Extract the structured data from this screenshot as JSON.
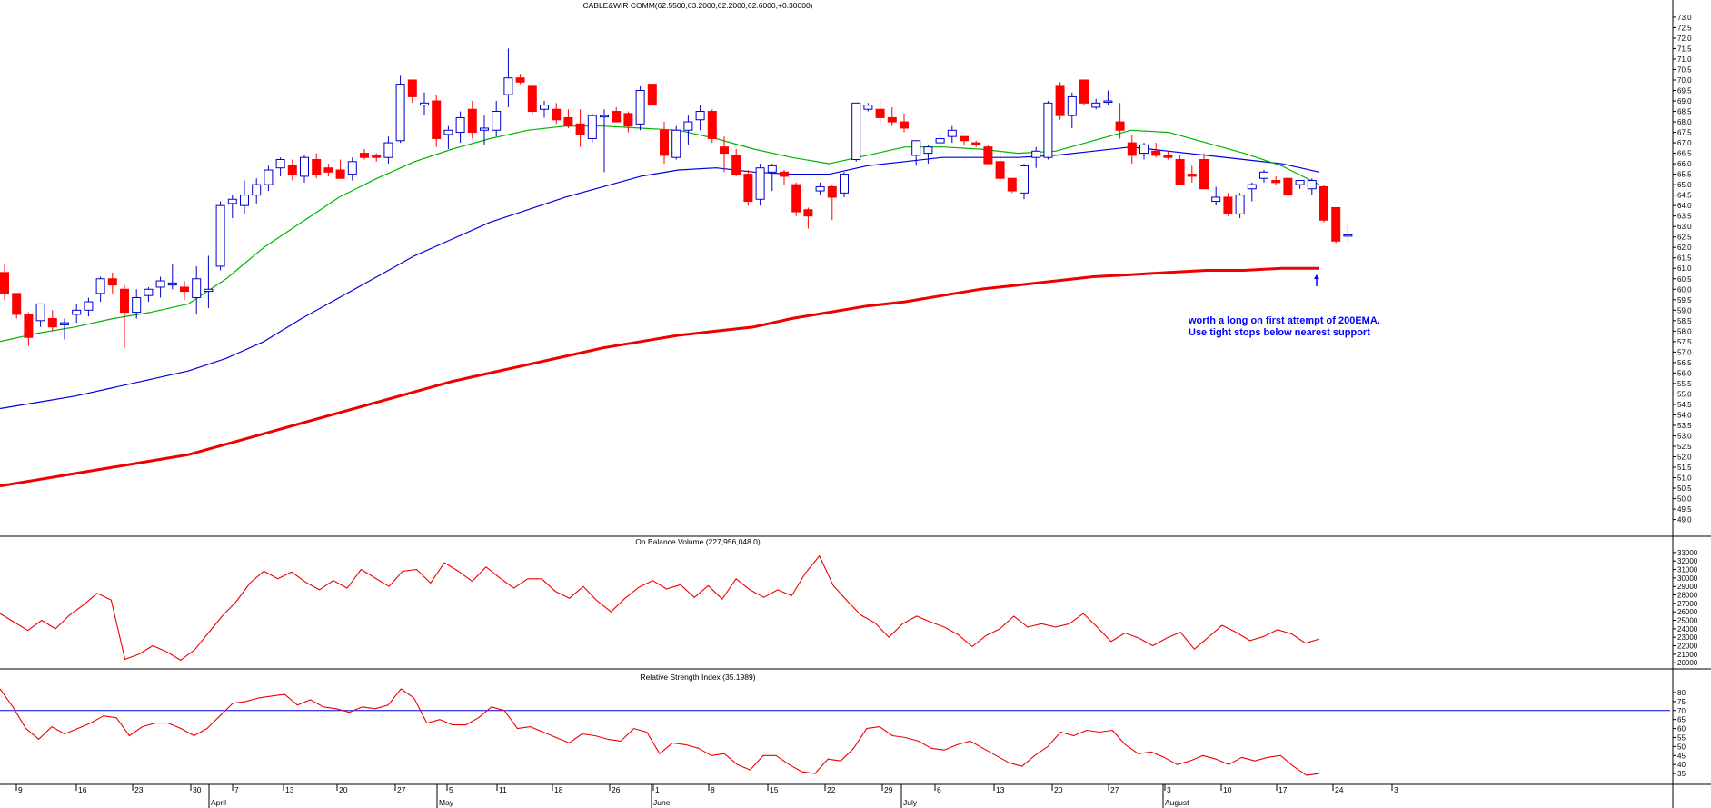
{
  "chart_data": {
    "type": "candlestick",
    "colors": {
      "up_body": "#0000cc",
      "down_body": "#ff0000",
      "ema_green": "#00b400",
      "ema_blue": "#0000dd",
      "ema_200": "#ee0000",
      "indicator_line": "#ee0000",
      "rsi_level": "#0000ee",
      "annotation": "#0000ff"
    },
    "main": {
      "title": "CABLE&WIR COMM(62.5500,63.2000,62.2000,62.6000,+0.30000)",
      "y_ticks": [
        73.0,
        72.5,
        72.0,
        71.5,
        71.0,
        70.5,
        70.0,
        69.5,
        69.0,
        68.5,
        68.0,
        67.5,
        67.0,
        66.5,
        66.0,
        65.5,
        65.0,
        64.5,
        64.0,
        63.5,
        63.0,
        62.5,
        62.0,
        61.5,
        61.0,
        60.5,
        60.0,
        59.5,
        59.0,
        58.5,
        58.0,
        57.5,
        57.0,
        56.5,
        56.0,
        55.5,
        55.0,
        54.5,
        54.0,
        53.5,
        53.0,
        52.5,
        52.0,
        51.5,
        51.0,
        50.5,
        50.0,
        49.5,
        49.0
      ],
      "ylim": [
        48.2,
        73.3
      ],
      "candles": [
        [
          60.8,
          61.2,
          59.5,
          59.8
        ],
        [
          59.8,
          59.8,
          58.6,
          58.8
        ],
        [
          58.8,
          58.9,
          57.3,
          57.7
        ],
        [
          58.5,
          59.3,
          58.2,
          59.3
        ],
        [
          58.6,
          59.0,
          58.0,
          58.2
        ],
        [
          58.3,
          58.6,
          57.6,
          58.4
        ],
        [
          58.8,
          59.3,
          58.4,
          59.0
        ],
        [
          59.0,
          59.6,
          58.7,
          59.4
        ],
        [
          59.8,
          60.6,
          59.4,
          60.5
        ],
        [
          60.5,
          60.8,
          59.8,
          60.2
        ],
        [
          60.0,
          60.2,
          57.2,
          58.9
        ],
        [
          58.9,
          60.0,
          58.6,
          59.6
        ],
        [
          59.7,
          60.1,
          59.4,
          60.0
        ],
        [
          60.1,
          60.6,
          59.6,
          60.4
        ],
        [
          60.2,
          61.2,
          60.0,
          60.3
        ],
        [
          60.1,
          60.4,
          59.5,
          59.9
        ],
        [
          59.6,
          61.1,
          58.8,
          60.5
        ],
        [
          59.9,
          61.6,
          59.1,
          60.0
        ],
        [
          61.1,
          64.2,
          60.9,
          64.0
        ],
        [
          64.1,
          64.5,
          63.4,
          64.3
        ],
        [
          64.0,
          65.2,
          63.6,
          64.5
        ],
        [
          64.5,
          65.3,
          64.1,
          65.0
        ],
        [
          65.0,
          65.9,
          64.7,
          65.7
        ],
        [
          65.8,
          66.3,
          65.4,
          66.2
        ],
        [
          65.9,
          66.2,
          65.2,
          65.5
        ],
        [
          65.4,
          66.4,
          65.1,
          66.3
        ],
        [
          66.2,
          66.5,
          65.3,
          65.5
        ],
        [
          65.8,
          66.0,
          65.4,
          65.6
        ],
        [
          65.7,
          66.2,
          65.3,
          65.3
        ],
        [
          65.5,
          66.3,
          65.2,
          66.1
        ],
        [
          66.5,
          66.7,
          66.2,
          66.3
        ],
        [
          66.4,
          66.5,
          66.1,
          66.3
        ],
        [
          66.3,
          67.3,
          66.0,
          67.0
        ],
        [
          67.1,
          70.2,
          67.0,
          69.8
        ],
        [
          70.0,
          70.0,
          68.9,
          69.2
        ],
        [
          68.8,
          69.4,
          68.3,
          68.9
        ],
        [
          69.0,
          69.3,
          66.8,
          67.2
        ],
        [
          67.4,
          67.8,
          66.7,
          67.6
        ],
        [
          67.5,
          68.5,
          67.0,
          68.2
        ],
        [
          68.6,
          69.0,
          67.2,
          67.5
        ],
        [
          67.6,
          68.3,
          66.9,
          67.7
        ],
        [
          67.6,
          69.0,
          67.3,
          68.5
        ],
        [
          69.3,
          71.5,
          68.7,
          70.1
        ],
        [
          70.1,
          70.3,
          69.8,
          69.9
        ],
        [
          69.7,
          69.8,
          68.3,
          68.5
        ],
        [
          68.6,
          69.0,
          68.2,
          68.8
        ],
        [
          68.6,
          68.9,
          67.9,
          68.1
        ],
        [
          68.2,
          68.6,
          67.7,
          67.8
        ],
        [
          67.9,
          68.6,
          66.8,
          67.4
        ],
        [
          67.2,
          68.4,
          67.0,
          68.3
        ],
        [
          68.3,
          68.6,
          65.6,
          68.3
        ],
        [
          68.5,
          68.7,
          68.0,
          68.0
        ],
        [
          68.4,
          68.5,
          67.5,
          67.8
        ],
        [
          67.9,
          69.7,
          67.6,
          69.5
        ],
        [
          69.8,
          69.8,
          68.8,
          68.8
        ],
        [
          67.6,
          68.0,
          66.0,
          66.4
        ],
        [
          66.3,
          67.8,
          66.2,
          67.6
        ],
        [
          67.6,
          68.3,
          66.9,
          68.0
        ],
        [
          68.1,
          68.8,
          67.6,
          68.5
        ],
        [
          68.5,
          68.6,
          67.0,
          67.2
        ],
        [
          66.8,
          67.3,
          65.6,
          66.5
        ],
        [
          66.4,
          66.7,
          65.4,
          65.5
        ],
        [
          65.5,
          65.7,
          64.0,
          64.2
        ],
        [
          64.3,
          66.0,
          64.0,
          65.8
        ],
        [
          65.6,
          66.0,
          64.7,
          65.9
        ],
        [
          65.6,
          65.7,
          65.0,
          65.4
        ],
        [
          65.0,
          65.1,
          63.5,
          63.7
        ],
        [
          63.8,
          63.9,
          62.9,
          63.5
        ],
        [
          64.7,
          65.1,
          64.5,
          64.9
        ],
        [
          64.9,
          65.0,
          63.3,
          64.4
        ],
        [
          64.6,
          65.6,
          64.4,
          65.5
        ],
        [
          66.2,
          68.9,
          66.1,
          68.9
        ],
        [
          68.6,
          68.9,
          68.5,
          68.8
        ],
        [
          68.6,
          69.1,
          67.9,
          68.2
        ],
        [
          68.2,
          68.7,
          67.8,
          68.0
        ],
        [
          68.0,
          68.4,
          67.5,
          67.7
        ],
        [
          66.4,
          67.1,
          65.9,
          67.1
        ],
        [
          66.5,
          66.9,
          66.0,
          66.8
        ],
        [
          67.0,
          67.5,
          66.7,
          67.2
        ],
        [
          67.3,
          67.8,
          67.0,
          67.6
        ],
        [
          67.3,
          67.3,
          66.9,
          67.1
        ],
        [
          67.0,
          67.1,
          66.8,
          66.9
        ],
        [
          66.8,
          66.9,
          66.0,
          66.0
        ],
        [
          66.1,
          66.6,
          65.2,
          65.3
        ],
        [
          65.3,
          65.3,
          64.6,
          64.7
        ],
        [
          64.6,
          66.0,
          64.3,
          65.9
        ],
        [
          66.3,
          66.8,
          65.8,
          66.6
        ],
        [
          66.3,
          69.0,
          66.2,
          68.9
        ],
        [
          69.7,
          69.9,
          68.1,
          68.3
        ],
        [
          68.3,
          69.4,
          67.7,
          69.2
        ],
        [
          70.0,
          70.0,
          68.8,
          68.9
        ],
        [
          68.7,
          69.1,
          68.6,
          68.9
        ],
        [
          69.0,
          69.5,
          68.8,
          69.0
        ],
        [
          68.0,
          68.9,
          67.2,
          67.6
        ],
        [
          67.0,
          67.4,
          66.0,
          66.4
        ],
        [
          66.5,
          67.0,
          66.2,
          66.9
        ],
        [
          66.6,
          67.0,
          66.3,
          66.4
        ],
        [
          66.4,
          66.6,
          66.2,
          66.3
        ],
        [
          66.2,
          66.4,
          65.0,
          65.0
        ],
        [
          65.5,
          65.9,
          65.1,
          65.4
        ],
        [
          66.2,
          66.5,
          64.8,
          64.8
        ],
        [
          64.2,
          64.9,
          64.0,
          64.4
        ],
        [
          64.4,
          64.6,
          63.5,
          63.6
        ],
        [
          63.6,
          64.6,
          63.4,
          64.5
        ],
        [
          64.8,
          65.1,
          64.2,
          65.0
        ],
        [
          65.3,
          65.7,
          65.1,
          65.6
        ],
        [
          65.2,
          65.4,
          65.0,
          65.1
        ],
        [
          65.3,
          65.5,
          64.5,
          64.5
        ],
        [
          65.0,
          65.2,
          64.8,
          65.2
        ],
        [
          64.8,
          65.3,
          64.5,
          65.2
        ],
        [
          64.9,
          65.0,
          63.2,
          63.3
        ],
        [
          63.9,
          63.9,
          62.2,
          62.3
        ],
        [
          62.55,
          63.2,
          62.2,
          62.6
        ]
      ],
      "ema_green": [
        57.5,
        57.9,
        58.2,
        58.6,
        58.9,
        59.3,
        60.5,
        62.0,
        63.2,
        64.4,
        65.3,
        66.1,
        66.7,
        67.2,
        67.6,
        67.8,
        67.8,
        67.7,
        67.6,
        67.2,
        66.7,
        66.3,
        66.0,
        66.4,
        66.8,
        66.8,
        66.7,
        66.5,
        66.6,
        67.1,
        67.6,
        67.5,
        67.0,
        66.5,
        65.9,
        65.0
      ],
      "ema_blue": [
        54.3,
        54.6,
        54.9,
        55.3,
        55.7,
        56.1,
        56.7,
        57.5,
        58.6,
        59.6,
        60.6,
        61.6,
        62.4,
        63.2,
        63.8,
        64.4,
        64.9,
        65.4,
        65.7,
        65.8,
        65.6,
        65.5,
        65.5,
        65.9,
        66.1,
        66.3,
        66.3,
        66.3,
        66.4,
        66.6,
        66.8,
        66.6,
        66.4,
        66.2,
        66.0,
        65.6
      ],
      "ema_200": [
        50.6,
        50.9,
        51.2,
        51.5,
        51.8,
        52.1,
        52.6,
        53.1,
        53.6,
        54.1,
        54.6,
        55.1,
        55.6,
        56.0,
        56.4,
        56.8,
        57.2,
        57.5,
        57.8,
        58.0,
        58.2,
        58.6,
        58.9,
        59.2,
        59.4,
        59.7,
        60.0,
        60.2,
        60.4,
        60.6,
        60.7,
        60.8,
        60.9,
        60.9,
        61.0,
        61.0
      ],
      "annotation": [
        "worth a long on first attempt of 200EMA.",
        "Use tight stops below nearest support"
      ]
    },
    "obv": {
      "title": "On Balance Volume (227,956,048.0)",
      "y_ticks": [
        33000,
        32000,
        31000,
        30000,
        29000,
        28000,
        27000,
        26000,
        25000,
        24000,
        23000,
        22000,
        21000,
        20000
      ],
      "ylim": [
        19700,
        33200
      ],
      "values": [
        25800,
        24800,
        23800,
        25000,
        24000,
        25600,
        26800,
        28200,
        27400,
        20400,
        21000,
        22000,
        21300,
        20300,
        21500,
        23500,
        25500,
        27200,
        29400,
        30800,
        29900,
        30700,
        29500,
        28600,
        29700,
        28800,
        31000,
        30000,
        29000,
        30800,
        31000,
        29400,
        31800,
        30800,
        29600,
        31300,
        30000,
        28800,
        29900,
        29900,
        28400,
        27600,
        29000,
        27300,
        26000,
        27600,
        28900,
        29700,
        28700,
        29200,
        27700,
        29100,
        27500,
        29900,
        28600,
        27700,
        28600,
        27900,
        30600,
        32600,
        29100,
        27300,
        25600,
        24700,
        23000,
        24600,
        25500,
        24800,
        24200,
        23300,
        21900,
        23200,
        24000,
        25500,
        24200,
        24600,
        24200,
        24600,
        25800,
        24200,
        22500,
        23500,
        22900,
        22000,
        22900,
        23600,
        21600,
        23000,
        24400,
        23600,
        22600,
        23100,
        23900,
        23400,
        22300,
        22800
      ],
      "values_start": 0
    },
    "rsi": {
      "title": "Relative Strength Index (35.1989)",
      "y_ticks": [
        80,
        75,
        70,
        65,
        60,
        55,
        50,
        45,
        40,
        35
      ],
      "ylim": [
        31,
        83
      ],
      "level": 70,
      "values": [
        82,
        72,
        60,
        54,
        61,
        57,
        60,
        63,
        67,
        66,
        56,
        61,
        63,
        63,
        60,
        56,
        60,
        67,
        74,
        75,
        77,
        78,
        79,
        73,
        76,
        72,
        71,
        69,
        72,
        71,
        73,
        82,
        77,
        63,
        65,
        62,
        62,
        66,
        72,
        70,
        60,
        61,
        58,
        55,
        52,
        57,
        56,
        54,
        53,
        60,
        58,
        46,
        52,
        51,
        49,
        45,
        46,
        40,
        37,
        45,
        45,
        40,
        36,
        35,
        43,
        42,
        49,
        60,
        61,
        56,
        55,
        53,
        49,
        48,
        51,
        53,
        49,
        45,
        41,
        39,
        45,
        50,
        58,
        56,
        59,
        58,
        59,
        51,
        46,
        47,
        44,
        40,
        42,
        45,
        43,
        40,
        44,
        42,
        44,
        45,
        39,
        34,
        35
      ]
    },
    "x_axis": {
      "day_ticks": [
        "9",
        "16",
        "23",
        "30",
        "7",
        "13",
        "20",
        "27",
        "5",
        "11",
        "18",
        "26",
        "1",
        "8",
        "15",
        "22",
        "29",
        "6",
        "13",
        "20",
        "27",
        "3",
        "10",
        "17",
        "24",
        "3"
      ],
      "months": [
        "April",
        "May",
        "June",
        "July",
        "August"
      ]
    }
  }
}
